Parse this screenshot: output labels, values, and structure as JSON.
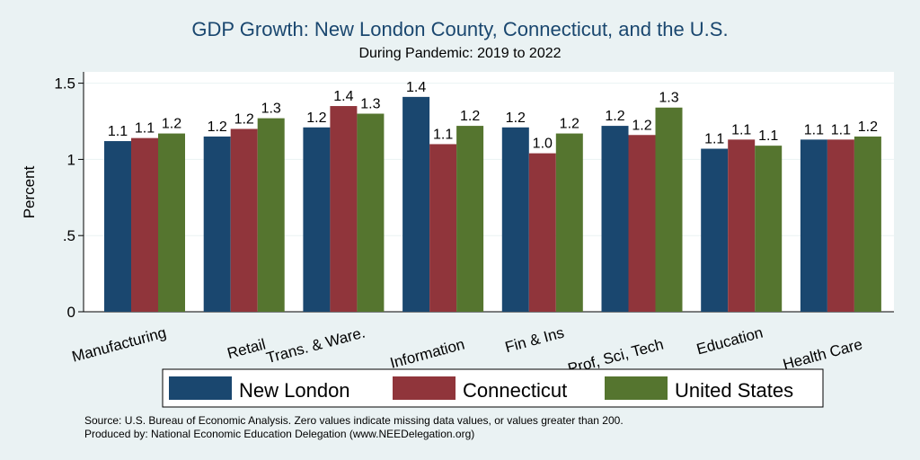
{
  "chart_data": {
    "type": "bar",
    "title": "GDP Growth: New London County, Connecticut, and the U.S.",
    "subtitle": "During Pandemic: 2019 to 2022",
    "xlabel": "",
    "ylabel": "Percent",
    "ylim": [
      0,
      1.6
    ],
    "yticks": [
      0,
      0.5,
      1,
      1.5
    ],
    "ytick_labels": [
      "0",
      ".5",
      "1",
      "1.5"
    ],
    "grid": true,
    "legend_position": "bottom",
    "categories": [
      "Manufacturing",
      "Retail",
      "Trans. & Ware.",
      "Information",
      "Fin & Ins",
      "Prof, Sci, Tech",
      "Education",
      "Health Care"
    ],
    "series": [
      {
        "name": "New London",
        "color": "#1a476f",
        "values": [
          1.12,
          1.15,
          1.21,
          1.41,
          1.21,
          1.22,
          1.07,
          1.13
        ],
        "labels": [
          "1.1",
          "1.2",
          "1.2",
          "1.4",
          "1.2",
          "1.2",
          "1.1",
          "1.1"
        ]
      },
      {
        "name": "Connecticut",
        "color": "#90353b",
        "values": [
          1.14,
          1.2,
          1.35,
          1.1,
          1.04,
          1.16,
          1.13,
          1.13
        ],
        "labels": [
          "1.1",
          "1.2",
          "1.4",
          "1.1",
          "1.0",
          "1.2",
          "1.1",
          "1.1"
        ]
      },
      {
        "name": "United States",
        "color": "#55752f",
        "values": [
          1.17,
          1.27,
          1.3,
          1.22,
          1.17,
          1.34,
          1.09,
          1.15
        ],
        "labels": [
          "1.2",
          "1.3",
          "1.3",
          "1.2",
          "1.2",
          "1.3",
          "1.1",
          "1.2"
        ]
      }
    ]
  },
  "notes": {
    "source": "Source: U.S. Bureau of Economic Analysis. Zero values indicate missing data values, or values greater than 200.",
    "produced": "Produced by: National Economic Education Delegation (www.NEEDelegation.org)"
  }
}
